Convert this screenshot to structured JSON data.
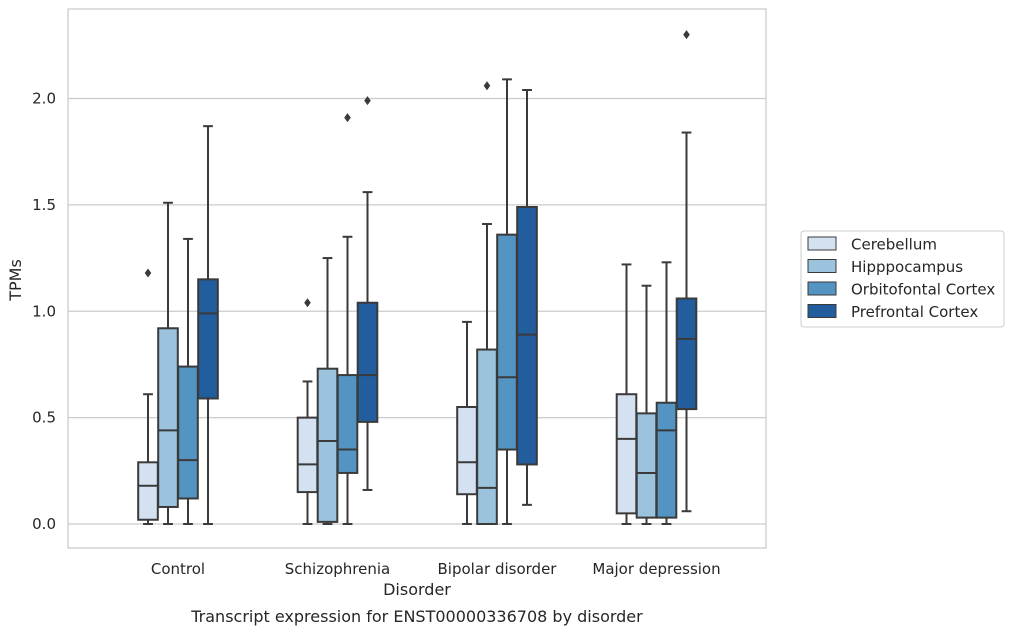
{
  "chart_data": {
    "type": "box",
    "title": "",
    "caption": "Transcript expression for ENST00000336708 by disorder",
    "xlabel": "Disorder",
    "ylabel": "TPMs",
    "ylim": [
      -0.11,
      2.42
    ],
    "yticks": [
      "0.0",
      "0.5",
      "1.0",
      "1.5",
      "2.0"
    ],
    "grid": "horizontal",
    "legend_placement": "right",
    "categories": [
      "Control",
      "Schizophrenia",
      "Bipolar disorder",
      "Major depression"
    ],
    "series": [
      {
        "name": "Cerebellum",
        "color": "#d4e1f0",
        "boxes": [
          {
            "q1": 0.02,
            "median": 0.18,
            "q3": 0.29,
            "whisker_low": 0.0,
            "whisker_high": 0.61,
            "outliers": [
              1.18
            ]
          },
          {
            "q1": 0.15,
            "median": 0.28,
            "q3": 0.5,
            "whisker_low": 0.0,
            "whisker_high": 0.67,
            "outliers": [
              1.04
            ]
          },
          {
            "q1": 0.14,
            "median": 0.29,
            "q3": 0.55,
            "whisker_low": 0.0,
            "whisker_high": 0.95,
            "outliers": []
          },
          {
            "q1": 0.05,
            "median": 0.4,
            "q3": 0.61,
            "whisker_low": 0.0,
            "whisker_high": 1.22,
            "outliers": []
          }
        ]
      },
      {
        "name": "Hipppocampus",
        "color": "#9cc3dd",
        "boxes": [
          {
            "q1": 0.08,
            "median": 0.44,
            "q3": 0.92,
            "whisker_low": 0.0,
            "whisker_high": 1.51,
            "outliers": []
          },
          {
            "q1": 0.01,
            "median": 0.39,
            "q3": 0.73,
            "whisker_low": 0.0,
            "whisker_high": 1.25,
            "outliers": []
          },
          {
            "q1": 0.0,
            "median": 0.17,
            "q3": 0.82,
            "whisker_low": 0.0,
            "whisker_high": 1.41,
            "outliers": [
              2.06
            ]
          },
          {
            "q1": 0.03,
            "median": 0.24,
            "q3": 0.52,
            "whisker_low": 0.0,
            "whisker_high": 1.12,
            "outliers": []
          }
        ]
      },
      {
        "name": "Orbitofontal Cortex",
        "color": "#5394c3",
        "boxes": [
          {
            "q1": 0.12,
            "median": 0.3,
            "q3": 0.74,
            "whisker_low": 0.0,
            "whisker_high": 1.34,
            "outliers": []
          },
          {
            "q1": 0.24,
            "median": 0.35,
            "q3": 0.7,
            "whisker_low": 0.0,
            "whisker_high": 1.35,
            "outliers": [
              1.91
            ]
          },
          {
            "q1": 0.35,
            "median": 0.69,
            "q3": 1.36,
            "whisker_low": 0.0,
            "whisker_high": 2.09,
            "outliers": []
          },
          {
            "q1": 0.03,
            "median": 0.44,
            "q3": 0.57,
            "whisker_low": 0.0,
            "whisker_high": 1.23,
            "outliers": []
          }
        ]
      },
      {
        "name": "Prefrontal Cortex",
        "color": "#225e9e",
        "boxes": [
          {
            "q1": 0.59,
            "median": 0.99,
            "q3": 1.15,
            "whisker_low": 0.0,
            "whisker_high": 1.87,
            "outliers": []
          },
          {
            "q1": 0.48,
            "median": 0.7,
            "q3": 1.04,
            "whisker_low": 0.16,
            "whisker_high": 1.56,
            "outliers": [
              1.99
            ]
          },
          {
            "q1": 0.28,
            "median": 0.89,
            "q3": 1.49,
            "whisker_low": 0.09,
            "whisker_high": 2.04,
            "outliers": []
          },
          {
            "q1": 0.54,
            "median": 0.87,
            "q3": 1.06,
            "whisker_low": 0.06,
            "whisker_high": 1.84,
            "outliers": [
              2.3
            ]
          }
        ]
      }
    ]
  }
}
